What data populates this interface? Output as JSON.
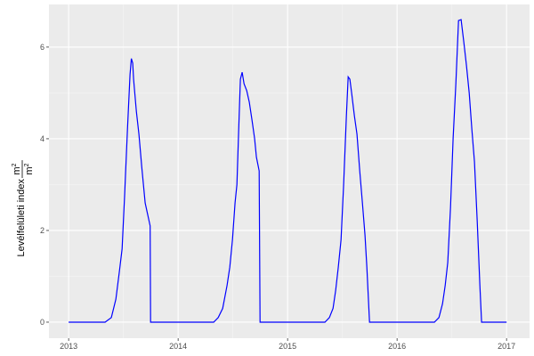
{
  "chart_data": {
    "type": "line",
    "title": "",
    "xlabel": "",
    "ylabel": "Levélfelületi index",
    "ylabel_unit_num": "m2",
    "ylabel_unit_den": "m2",
    "xlim": [
      2012.82,
      2017.21
    ],
    "ylim": [
      -0.35,
      6.93
    ],
    "xticks": [
      2013,
      2014,
      2015,
      2016,
      2017
    ],
    "xtick_labels": [
      "2013",
      "2014",
      "2015",
      "2016",
      "2017"
    ],
    "yticks": [
      0,
      2,
      4,
      6
    ],
    "ytick_labels": [
      "0",
      "2",
      "4",
      "6"
    ],
    "grid": true,
    "color": "#0000ff",
    "points": [
      [
        2013.0,
        0
      ],
      [
        2013.333,
        0
      ],
      [
        2013.39,
        0.1
      ],
      [
        2013.431,
        0.5
      ],
      [
        2013.463,
        1.1
      ],
      [
        2013.488,
        1.6
      ],
      [
        2013.512,
        2.8
      ],
      [
        2013.537,
        4.2
      ],
      [
        2013.561,
        5.4
      ],
      [
        2013.573,
        5.75
      ],
      [
        2013.585,
        5.65
      ],
      [
        2013.593,
        5.3
      ],
      [
        2013.618,
        4.6
      ],
      [
        2013.642,
        4.1
      ],
      [
        2013.667,
        3.4
      ],
      [
        2013.699,
        2.6
      ],
      [
        2013.744,
        2.1
      ],
      [
        2013.748,
        0
      ],
      [
        2014.325,
        0
      ],
      [
        2014.366,
        0.1
      ],
      [
        2014.407,
        0.3
      ],
      [
        2014.447,
        0.8
      ],
      [
        2014.472,
        1.2
      ],
      [
        2014.496,
        1.8
      ],
      [
        2014.52,
        2.6
      ],
      [
        2014.537,
        3.0
      ],
      [
        2014.553,
        4.2
      ],
      [
        2014.569,
        5.3
      ],
      [
        2014.585,
        5.45
      ],
      [
        2014.602,
        5.2
      ],
      [
        2014.626,
        5.05
      ],
      [
        2014.65,
        4.8
      ],
      [
        2014.675,
        4.4
      ],
      [
        2014.699,
        4.0
      ],
      [
        2014.715,
        3.6
      ],
      [
        2014.74,
        3.3
      ],
      [
        2014.748,
        0
      ],
      [
        2015.341,
        0
      ],
      [
        2015.382,
        0.1
      ],
      [
        2015.415,
        0.3
      ],
      [
        2015.439,
        0.7
      ],
      [
        2015.463,
        1.2
      ],
      [
        2015.488,
        1.8
      ],
      [
        2015.512,
        3.0
      ],
      [
        2015.537,
        4.5
      ],
      [
        2015.553,
        5.35
      ],
      [
        2015.569,
        5.3
      ],
      [
        2015.585,
        5.0
      ],
      [
        2015.61,
        4.5
      ],
      [
        2015.634,
        4.1
      ],
      [
        2015.659,
        3.3
      ],
      [
        2015.683,
        2.6
      ],
      [
        2015.707,
        1.9
      ],
      [
        2015.724,
        1.2
      ],
      [
        2015.748,
        0
      ],
      [
        2016.341,
        0
      ],
      [
        2016.382,
        0.1
      ],
      [
        2016.415,
        0.4
      ],
      [
        2016.439,
        0.8
      ],
      [
        2016.463,
        1.3
      ],
      [
        2016.488,
        2.5
      ],
      [
        2016.512,
        4.0
      ],
      [
        2016.537,
        5.2
      ],
      [
        2016.561,
        6.58
      ],
      [
        2016.585,
        6.6
      ],
      [
        2016.61,
        6.1
      ],
      [
        2016.634,
        5.6
      ],
      [
        2016.659,
        5.0
      ],
      [
        2016.683,
        4.2
      ],
      [
        2016.707,
        3.5
      ],
      [
        2016.732,
        2.2
      ],
      [
        2016.756,
        0.8
      ],
      [
        2016.772,
        0
      ],
      [
        2017.0,
        0
      ]
    ]
  }
}
